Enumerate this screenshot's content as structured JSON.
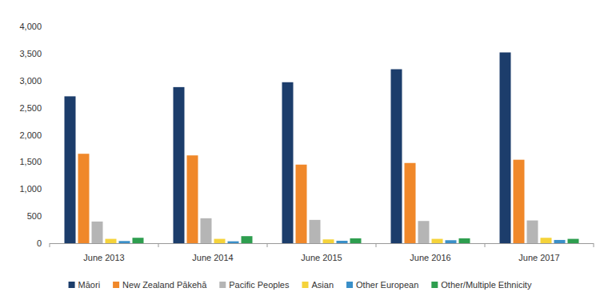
{
  "chart_data": {
    "type": "bar",
    "categories": [
      "June 2013",
      "June 2014",
      "June 2015",
      "June 2016",
      "June 2017"
    ],
    "series": [
      {
        "name": "Māori",
        "color": "#1c3d6b",
        "values": [
          2710,
          2880,
          2970,
          3210,
          3520
        ]
      },
      {
        "name": "New Zealand Pākehā",
        "color": "#f0882a",
        "values": [
          1650,
          1620,
          1450,
          1480,
          1540
        ]
      },
      {
        "name": "Pacific Peoples",
        "color": "#b5b5b5",
        "values": [
          400,
          460,
          430,
          410,
          420
        ]
      },
      {
        "name": "Asian",
        "color": "#f5d33a",
        "values": [
          80,
          80,
          70,
          80,
          100
        ]
      },
      {
        "name": "Other European",
        "color": "#3a8fc8",
        "values": [
          40,
          35,
          45,
          55,
          60
        ]
      },
      {
        "name": "Other/Multiple Ethnicity",
        "color": "#2e9e4f",
        "values": [
          100,
          130,
          90,
          90,
          80
        ]
      }
    ],
    "ylim": [
      0,
      4000
    ],
    "yticks": [
      0,
      500,
      {
        "value": 1000,
        "label": "1,000"
      },
      {
        "value": 1500,
        "label": "1,500"
      },
      {
        "value": 2000,
        "label": "2,000"
      },
      {
        "value": 2500,
        "label": "2,500"
      },
      {
        "value": 3000,
        "label": "3,000"
      },
      {
        "value": 3500,
        "label": "3,500"
      },
      {
        "value": 4000,
        "label": "4,000"
      }
    ],
    "grid": false,
    "legend": "bottom"
  }
}
